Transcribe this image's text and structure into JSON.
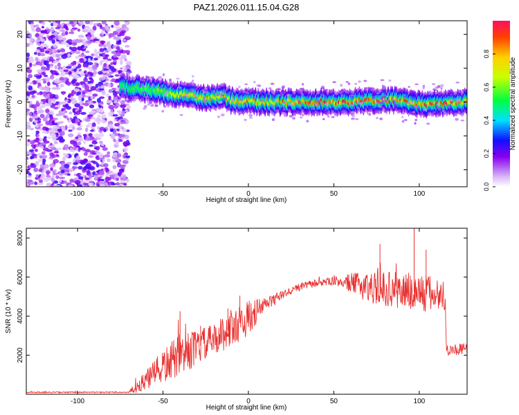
{
  "title": "PAZ1.2026.011.15.04.G28",
  "chart_data": [
    {
      "type": "heatmap",
      "xlabel": "Height of straight line (km)",
      "ylabel": "Frequency (Hz)",
      "xlim": [
        -130,
        128
      ],
      "ylim": [
        -25,
        24
      ],
      "xticks": [
        -100,
        -50,
        0,
        50,
        100
      ],
      "yticks": [
        -20,
        -10,
        0,
        10,
        20
      ],
      "colorbar": {
        "label": "Normalized spectral amplitude",
        "ticks": [
          "0.0",
          "0.2",
          "0.4",
          "0.6",
          "0.8"
        ],
        "range": [
          0,
          1
        ]
      },
      "noise_region_x": [
        -130,
        -70
      ],
      "ridge": {
        "x": [
          -75,
          -65,
          -55,
          -45,
          -35,
          -25,
          -15,
          -10,
          0,
          10,
          25,
          40,
          55,
          70,
          85,
          100,
          115,
          128
        ],
        "frequency": [
          4.5,
          4.0,
          3.5,
          2.5,
          1.8,
          1.0,
          1.8,
          0.5,
          0.2,
          0.0,
          0.0,
          0.0,
          0.0,
          0.5,
          0.5,
          -0.5,
          -0.5,
          0.0
        ],
        "peak_amplitude": [
          0.5,
          0.55,
          0.6,
          0.7,
          0.8,
          0.85,
          0.8,
          0.8,
          0.85,
          0.85,
          0.9,
          0.95,
          0.95,
          0.95,
          0.95,
          0.95,
          0.95,
          0.9
        ]
      }
    },
    {
      "type": "line",
      "xlabel": "Height of straight line (km)",
      "ylabel": "SNR (10 * v/v)",
      "xlim": [
        -130,
        128
      ],
      "ylim": [
        0,
        8500
      ],
      "xticks": [
        -100,
        -50,
        0,
        50,
        100
      ],
      "yticks": [
        2000,
        4000,
        6000,
        8000
      ],
      "color": "#e8302f",
      "envelope": {
        "x": [
          -130,
          -70,
          -68,
          -60,
          -50,
          -40,
          -30,
          -20,
          -10,
          0,
          10,
          20,
          30,
          40,
          50,
          60,
          70,
          80,
          90,
          100,
          110,
          115,
          116,
          128
        ],
        "mean": [
          100,
          100,
          200,
          700,
          1400,
          2000,
          2400,
          2800,
          3400,
          3900,
          4600,
          5100,
          5500,
          5700,
          5800,
          5700,
          5500,
          5400,
          5300,
          5200,
          5100,
          5000,
          2300,
          2300
        ],
        "spread": [
          30,
          30,
          200,
          500,
          900,
          1100,
          900,
          800,
          1000,
          900,
          400,
          200,
          200,
          200,
          200,
          500,
          800,
          900,
          1000,
          1100,
          900,
          800,
          300,
          300
        ]
      },
      "peaks": [
        {
          "x": 97,
          "y": 8500
        },
        {
          "x": 77,
          "y": 7700
        },
        {
          "x": 104,
          "y": 7400
        },
        {
          "x": -40,
          "y": 4250
        },
        {
          "x": -5,
          "y": 5050
        },
        {
          "x": -12,
          "y": 4400
        },
        {
          "x": -28,
          "y": 3500
        }
      ]
    }
  ]
}
